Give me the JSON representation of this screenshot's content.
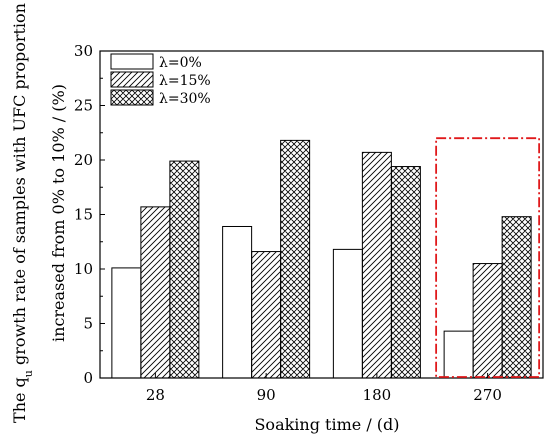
{
  "chart_data": {
    "type": "bar",
    "title": "",
    "categories": [
      "28",
      "90",
      "180",
      "270"
    ],
    "series": [
      {
        "name": "λ=0%",
        "values": [
          10.1,
          13.9,
          11.8,
          4.3
        ]
      },
      {
        "name": "λ=15%",
        "values": [
          15.7,
          11.6,
          20.7,
          10.5
        ]
      },
      {
        "name": "λ=30%",
        "values": [
          19.9,
          21.8,
          19.4,
          14.8
        ]
      }
    ],
    "xlabel": "Soaking time / (d)",
    "ylabel_line1": "The q",
    "ylabel_sub": "u",
    "ylabel_line1_rest": " growth rate of samples with UFC proportion",
    "ylabel_line2": "increased from 0% to 10% / (%)",
    "ylim": [
      0,
      30
    ],
    "yticks": [
      "0",
      "5",
      "10",
      "15",
      "20",
      "25",
      "30"
    ],
    "legend_position": "top-left",
    "highlight_category": "270",
    "highlight_color": "#e0191b",
    "series_patterns": [
      "none",
      "diagonal-hatch",
      "cross-hatch"
    ]
  }
}
